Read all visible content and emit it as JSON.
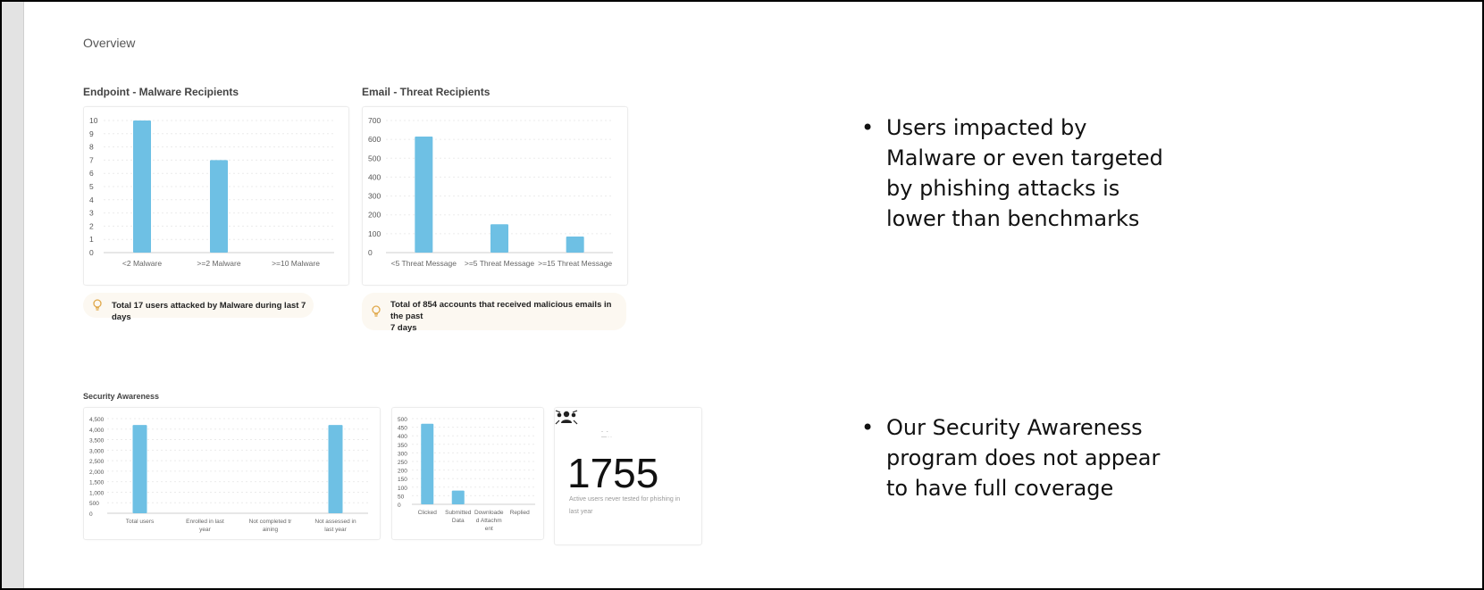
{
  "overview": {
    "title": "Overview"
  },
  "colors": {
    "bar": "#6ec0e4",
    "grid": "#ebebeb",
    "axis": "#cfcfcf",
    "tip_bg": "#fcf8f1",
    "bulb": "#e0a84a"
  },
  "sections": {
    "endpoint": {
      "title": "Endpoint - Malware Recipients"
    },
    "email": {
      "title": "Email - Threat Recipients"
    },
    "security_awareness": {
      "title": "Security Awareness"
    }
  },
  "tips": {
    "endpoint": {
      "icon": "lightbulb-icon",
      "text": "Total 17 users attacked by Malware during last 7 days"
    },
    "email": {
      "icon": "lightbulb-icon",
      "line1": "Total of 854 accounts that received malicious emails in the past",
      "line2": "7 days"
    }
  },
  "kpi": {
    "icon": "users-icon",
    "value": "1755",
    "caption_line1": "Active users never tested for phishing in",
    "caption_line2": "last year"
  },
  "bullets": {
    "first": [
      "Users impacted by",
      "Malware or even targeted",
      "by phishing attacks is",
      "lower than benchmarks"
    ],
    "second": [
      "Our Security Awareness",
      "program does not appear",
      "to have full coverage"
    ]
  },
  "chart_data": [
    {
      "id": "malware",
      "type": "bar",
      "categories": [
        "<2 Malware",
        ">=2 Malware",
        ">=10 Malware"
      ],
      "values": [
        10,
        7,
        0
      ],
      "yticks": [
        0,
        1,
        2,
        3,
        4,
        5,
        6,
        7,
        8,
        9,
        10
      ],
      "ylim": [
        0,
        10
      ]
    },
    {
      "id": "threat",
      "type": "bar",
      "categories": [
        "<5 Threat Message",
        ">=5 Threat Message",
        ">=15 Threat Message"
      ],
      "values": [
        615,
        150,
        85
      ],
      "yticks": [
        0,
        100,
        200,
        300,
        400,
        500,
        600,
        700
      ],
      "ylim": [
        0,
        700
      ]
    },
    {
      "id": "awareness",
      "type": "bar",
      "categories": [
        [
          "Total users"
        ],
        [
          "Enrolled in last",
          "year"
        ],
        [
          "Not completed tr",
          "aining"
        ],
        [
          "Not assessed in",
          "last year"
        ]
      ],
      "values": [
        4200,
        0,
        0,
        4200
      ],
      "yticks": [
        0,
        500,
        1000,
        1500,
        2000,
        2500,
        3000,
        3500,
        4000,
        4500
      ],
      "ytick_labels": [
        "0",
        "500",
        "1,000",
        "1,500",
        "2,000",
        "2,500",
        "3,000",
        "3,500",
        "4,000",
        "4,500"
      ],
      "ylim": [
        0,
        4500
      ]
    },
    {
      "id": "phishing",
      "type": "bar",
      "categories": [
        [
          "Clicked"
        ],
        [
          "Submitted",
          "Data"
        ],
        [
          "Downloade",
          "d Attachm",
          "ent"
        ],
        [
          "Replied"
        ]
      ],
      "values": [
        470,
        80,
        0,
        0
      ],
      "yticks": [
        0,
        50,
        100,
        150,
        200,
        250,
        300,
        350,
        400,
        450,
        500
      ],
      "ylim": [
        0,
        500
      ]
    }
  ]
}
